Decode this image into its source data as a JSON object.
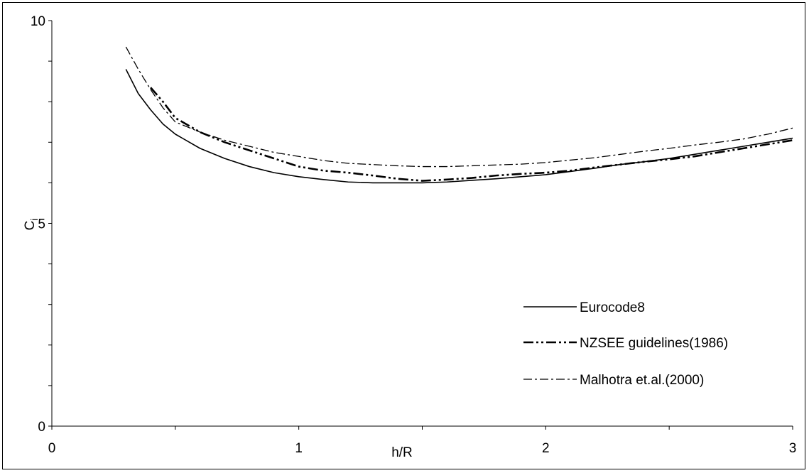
{
  "chart_data": {
    "type": "line",
    "title": "",
    "xlabel": "h/R",
    "ylabel": "Ci",
    "ylabel_main": "C",
    "ylabel_sub": "i",
    "xlim": [
      0,
      3
    ],
    "ylim": [
      0,
      10
    ],
    "x_ticks": [
      0,
      1,
      2,
      3
    ],
    "x_tick_labels": [
      "0",
      "1",
      "2",
      "3"
    ],
    "x_minor_ticks": [
      0.5,
      1.5,
      2.5
    ],
    "y_ticks": [
      0,
      5,
      10
    ],
    "y_tick_labels": [
      "0",
      "5",
      "10"
    ],
    "y_minor_ticks": [
      1,
      2,
      3,
      4,
      6,
      7,
      8,
      9
    ],
    "grid": false,
    "legend_position": "bottom-right",
    "series": [
      {
        "name": "Eurocode8",
        "style": "solid",
        "color": "#000000",
        "x": [
          0.3,
          0.35,
          0.4,
          0.45,
          0.5,
          0.6,
          0.7,
          0.8,
          0.9,
          1.0,
          1.1,
          1.2,
          1.3,
          1.4,
          1.5,
          1.6,
          1.7,
          1.8,
          1.9,
          2.0,
          2.1,
          2.2,
          2.3,
          2.4,
          2.5,
          2.6,
          2.7,
          2.8,
          2.9,
          3.0
        ],
        "y": [
          8.8,
          8.2,
          7.8,
          7.45,
          7.2,
          6.85,
          6.6,
          6.4,
          6.25,
          6.15,
          6.08,
          6.02,
          6.0,
          6.0,
          6.0,
          6.02,
          6.06,
          6.1,
          6.15,
          6.2,
          6.28,
          6.36,
          6.45,
          6.52,
          6.6,
          6.7,
          6.8,
          6.9,
          7.0,
          7.1
        ]
      },
      {
        "name": "NZSEE guidelines(1986)",
        "style": "dash-dot-dot-thick",
        "color": "#000000",
        "x": [
          0.4,
          0.45,
          0.5,
          0.6,
          0.7,
          0.8,
          0.9,
          1.0,
          1.1,
          1.2,
          1.3,
          1.4,
          1.5,
          1.6,
          1.7,
          1.8,
          1.9,
          2.0,
          2.1,
          2.2,
          2.3,
          2.4,
          2.5,
          2.6,
          2.7,
          2.8,
          2.9,
          3.0
        ],
        "y": [
          8.35,
          8.0,
          7.6,
          7.25,
          7.0,
          6.8,
          6.6,
          6.4,
          6.3,
          6.25,
          6.18,
          6.1,
          6.05,
          6.08,
          6.12,
          6.18,
          6.22,
          6.25,
          6.3,
          6.38,
          6.45,
          6.52,
          6.58,
          6.65,
          6.75,
          6.85,
          6.95,
          7.05
        ]
      },
      {
        "name": "Malhotra et.al.(2000)",
        "style": "dash-dot",
        "color": "#000000",
        "x": [
          0.3,
          0.35,
          0.4,
          0.45,
          0.5,
          0.6,
          0.7,
          0.8,
          0.9,
          1.0,
          1.1,
          1.2,
          1.3,
          1.4,
          1.5,
          1.6,
          1.7,
          1.8,
          1.9,
          2.0,
          2.1,
          2.2,
          2.3,
          2.4,
          2.5,
          2.6,
          2.7,
          2.8,
          2.9,
          3.0
        ],
        "y": [
          9.35,
          8.8,
          8.3,
          7.85,
          7.5,
          7.25,
          7.05,
          6.9,
          6.75,
          6.65,
          6.55,
          6.48,
          6.45,
          6.42,
          6.4,
          6.4,
          6.42,
          6.44,
          6.46,
          6.5,
          6.56,
          6.62,
          6.7,
          6.78,
          6.85,
          6.93,
          7.0,
          7.08,
          7.2,
          7.35
        ]
      }
    ]
  },
  "colors": {
    "background": "#ffffff",
    "line": "#000000"
  }
}
